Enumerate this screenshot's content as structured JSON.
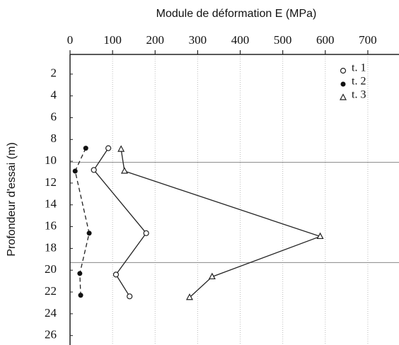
{
  "chart_data": {
    "type": "line",
    "title": "Module de déformation E (MPa)",
    "y_label": "Profondeur d'essai (m)",
    "xlim": [
      0,
      750
    ],
    "xticks": [
      0,
      100,
      200,
      300,
      400,
      500,
      600,
      700
    ],
    "ylim": [
      0,
      26.8
    ],
    "yticks": [
      2,
      4,
      6,
      8,
      10,
      12,
      14,
      16,
      18,
      20,
      22,
      24,
      26
    ],
    "y_inverted": true,
    "grid": true,
    "hlines": [
      10.1,
      19.3
    ],
    "series": [
      {
        "name": "t. 1",
        "color": "#222",
        "marker": "circle",
        "dash": false,
        "x": [
          90,
          56,
          179,
          108,
          140
        ],
        "values": [
          8.8,
          10.8,
          16.6,
          20.4,
          22.4
        ]
      },
      {
        "name": "t. 2",
        "color": "#222",
        "marker": "dot",
        "dash": true,
        "x": [
          37,
          12,
          45,
          23,
          25
        ],
        "values": [
          8.8,
          10.9,
          16.6,
          20.3,
          22.3
        ]
      },
      {
        "name": "t. 3",
        "color": "#222",
        "marker": "triangle",
        "dash": false,
        "x": [
          120,
          128,
          588,
          334,
          281
        ],
        "values": [
          8.9,
          10.9,
          16.9,
          20.6,
          22.5
        ]
      }
    ]
  }
}
